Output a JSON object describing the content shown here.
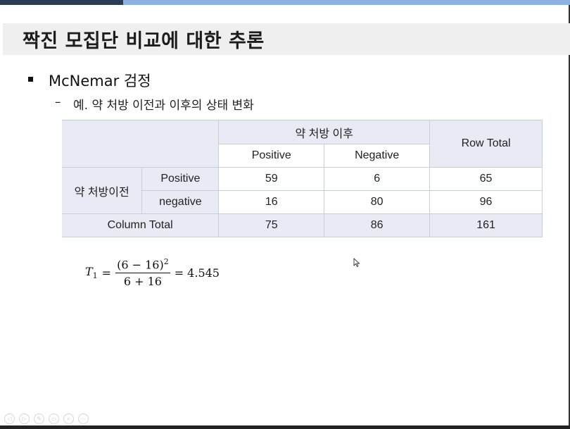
{
  "slide": {
    "title": "짝진 모집단 비교에 대한 추론",
    "bullet": "McNemar 검정",
    "sub_dash": "–",
    "sub_text": "예.  약 처방 이전과 이후의 상태 변화"
  },
  "table": {
    "after_header": "약 처방 이후",
    "row_total_header": "Row Total",
    "col_positive": "Positive",
    "col_negative": "Negative",
    "before_label": "약 처방이전",
    "row_positive": "Positive",
    "row_negative": "negative",
    "column_total_label": "Column Total",
    "rows": [
      [
        "59",
        "6",
        "65"
      ],
      [
        "16",
        "80",
        "96"
      ]
    ],
    "totals": [
      "75",
      "86",
      "161"
    ]
  },
  "formula": {
    "lhs_var": "T",
    "lhs_sub": "1",
    "eq": "=",
    "num": "(6 − 16)",
    "num_sup": "2",
    "den": "6 + 16",
    "result": "= 4.545"
  },
  "controls": [
    "◁",
    "▷",
    "✎",
    "▭",
    "⌕",
    "⋯"
  ]
}
